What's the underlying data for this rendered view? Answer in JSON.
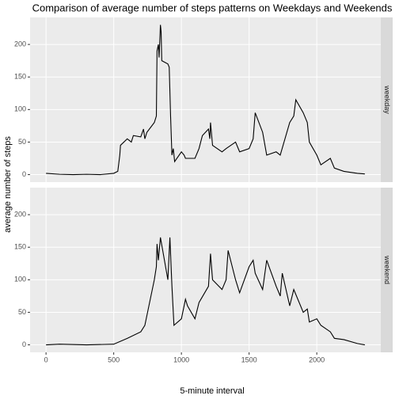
{
  "chart_data": {
    "type": "line",
    "title": "Comparison of average number of steps patterns on Weekdays and Weekends",
    "xlabel": "5-minute interval",
    "ylabel": "average number of steps",
    "color": "#000000",
    "xlim": [
      -117.75,
      2472.75
    ],
    "xticks": [
      0,
      500,
      1000,
      1500,
      2000
    ],
    "ylim": [
      -11.5,
      241.5
    ],
    "yticks": [
      0,
      50,
      100,
      150,
      200
    ],
    "panels": [
      {
        "name": "weekday",
        "x": [
          0,
          100,
          200,
          300,
          400,
          500,
          530,
          545,
          550,
          600,
          630,
          645,
          700,
          720,
          730,
          745,
          800,
          815,
          820,
          830,
          835,
          845,
          850,
          855,
          900,
          910,
          920,
          930,
          940,
          950,
          1000,
          1020,
          1030,
          1100,
          1130,
          1155,
          1200,
          1210,
          1215,
          1230,
          1300,
          1330,
          1400,
          1430,
          1500,
          1530,
          1545,
          1600,
          1630,
          1700,
          1730,
          1800,
          1830,
          1845,
          1900,
          1930,
          1945,
          2000,
          2030,
          2100,
          2130,
          2200,
          2300,
          2355
        ],
        "values": [
          2,
          0.5,
          0,
          0.5,
          0,
          2,
          5,
          30,
          45,
          55,
          50,
          60,
          58,
          70,
          55,
          65,
          80,
          90,
          190,
          200,
          180,
          230,
          220,
          175,
          170,
          165,
          90,
          30,
          40,
          20,
          35,
          30,
          25,
          25,
          40,
          60,
          70,
          55,
          80,
          45,
          35,
          40,
          50,
          35,
          40,
          55,
          95,
          65,
          30,
          35,
          30,
          80,
          90,
          115,
          95,
          80,
          50,
          30,
          15,
          25,
          10,
          5,
          2,
          1
        ]
      },
      {
        "name": "weekend",
        "x": [
          0,
          100,
          300,
          500,
          600,
          700,
          730,
          745,
          800,
          815,
          820,
          830,
          845,
          900,
          915,
          930,
          945,
          1000,
          1030,
          1045,
          1100,
          1130,
          1200,
          1215,
          1230,
          1300,
          1330,
          1345,
          1400,
          1430,
          1500,
          1530,
          1545,
          1600,
          1630,
          1700,
          1730,
          1745,
          1800,
          1830,
          1900,
          1930,
          1945,
          2000,
          2030,
          2100,
          2130,
          2200,
          2300,
          2355
        ],
        "values": [
          0,
          1,
          0,
          1,
          10,
          20,
          30,
          45,
          100,
          120,
          155,
          130,
          165,
          100,
          165,
          90,
          30,
          40,
          70,
          60,
          40,
          65,
          90,
          140,
          100,
          85,
          100,
          145,
          100,
          80,
          120,
          130,
          110,
          85,
          130,
          90,
          75,
          110,
          60,
          85,
          50,
          55,
          35,
          40,
          30,
          20,
          10,
          8,
          2,
          0
        ]
      }
    ]
  }
}
